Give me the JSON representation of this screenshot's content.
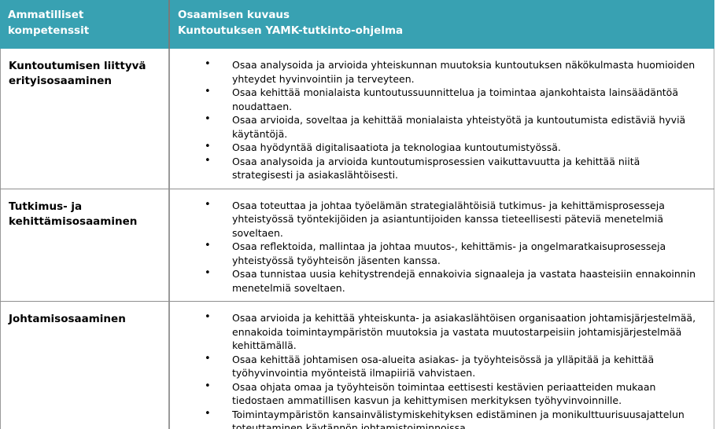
{
  "header": {
    "col1": "Ammatilliset kompetenssit",
    "col2_line1": "Osaamisen kuvaus",
    "col2_line2": "Kuntoutuksen YAMK-tutkinto-ohjelma"
  },
  "colors": {
    "header_bg": "#38a1b2",
    "header_text": "#ffffff",
    "border": "#8f8f8f",
    "body_text": "#000000"
  },
  "rows": [
    {
      "competence": "Kuntoutumisen liittyvä erityisosaaminen",
      "bullets": [
        "Osaa analysoida ja arvioida yhteiskunnan muutoksia kuntoutuksen näkökulmasta huomioiden yhteydet hyvinvointiin ja terveyteen.",
        "Osaa kehittää monialaista kuntoutussuunnittelua ja toimintaa ajankohtaista lainsäädäntöä noudattaen.",
        "Osaa arvioida, soveltaa ja kehittää monialaista yhteistyötä ja kuntoutumista edistäviä hyviä käytäntöjä.",
        "Osaa hyödyntää digitalisaatiota ja teknologiaa kuntoutumistyössä.",
        "Osaa analysoida ja arvioida kuntoutumisprosessien vaikuttavuutta ja kehittää niitä strategisesti ja asiakaslähtöisesti."
      ]
    },
    {
      "competence": "Tutkimus- ja kehittämisosaaminen",
      "bullets": [
        "Osaa toteuttaa ja johtaa työelämän strategialähtöisiä tutkimus- ja kehittämisprosesseja yhteistyössä työntekijöiden ja asiantuntijoiden kanssa tieteellisesti päteviä menetelmiä soveltaen.",
        "Osaa reflektoida, mallintaa ja johtaa muutos-, kehittämis- ja ongelmaratkaisuprosesseja yhteistyössä työyhteisön jäsenten kanssa.",
        "Osaa tunnistaa uusia kehitystrendejä ennakoivia signaaleja ja vastata haasteisiin ennakoinnin menetelmiä soveltaen."
      ]
    },
    {
      "competence": "Johtamisosaaminen",
      "bullets": [
        "Osaa arvioida ja kehittää yhteiskunta- ja asiakaslähtöisen organisaation johtamisjärjestelmää, ennakoida toimintaympäristön muutoksia ja vastata muutostarpeisiin johtamisjärjestelmää kehittämällä.",
        "Osaa kehittää johtamisen osa-alueita asiakas- ja työyhteisössä ja ylläpitää ja kehittää työhyvinvointia myönteistä ilmapiiriä vahvistaen.",
        "Osaa ohjata omaa ja työyhteisön toimintaa eettisesti kestävien periaatteiden mukaan tiedostaen ammatillisen kasvun ja kehittymisen merkityksen työhyvinvoinnille.",
        "Toimintaympäristön kansainvälistymiskehityksen edistäminen ja monikulttuurisuusajattelun toteuttaminen käytännön johtamistoiminnoissa."
      ]
    }
  ]
}
